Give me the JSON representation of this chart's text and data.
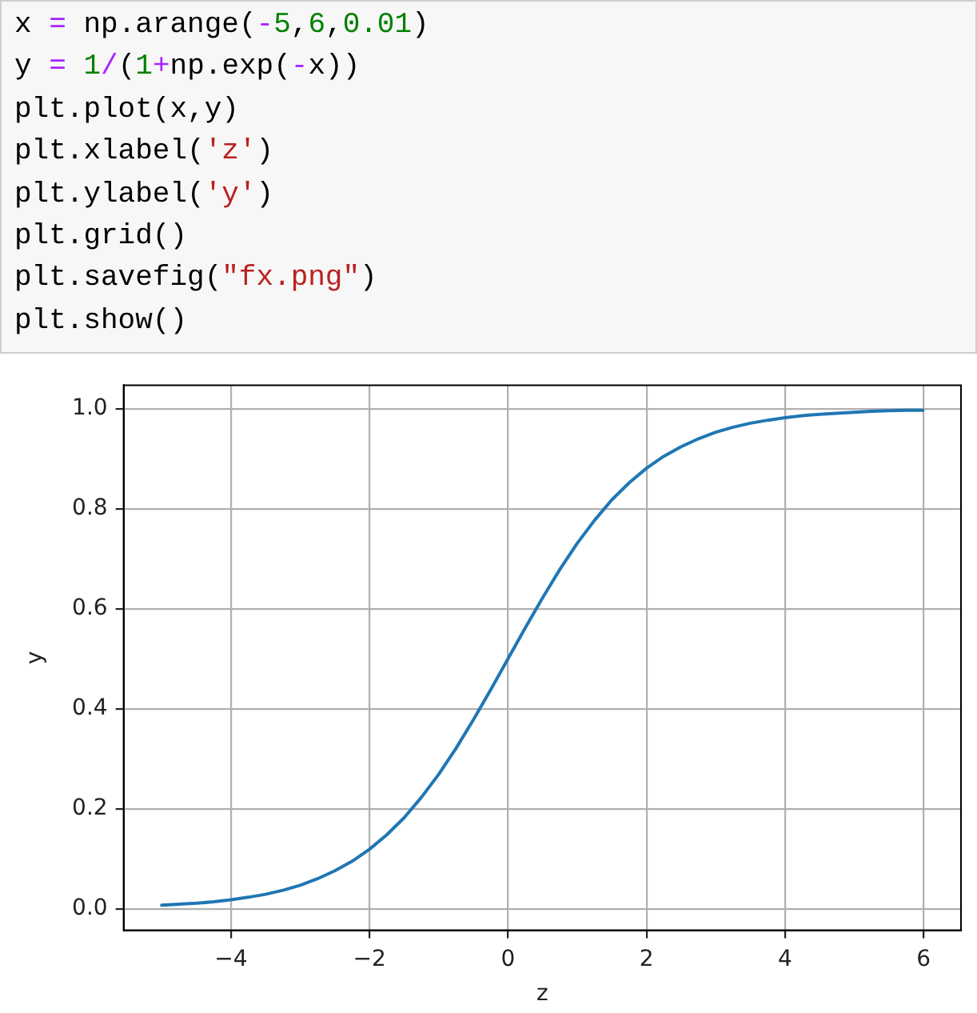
{
  "chart_data": {
    "type": "line",
    "annotations": [
      "x = np.arange(-5,6,0.01)",
      "y = 1/(1+np.exp(-x))",
      "plt.plot(x,y)",
      "plt.xlabel('z')",
      "plt.ylabel('y')",
      "plt.grid()",
      "plt.savefig(\"fx.png\")",
      "plt.show()"
    ],
    "xlabel": "z",
    "ylabel": "y",
    "x": [
      -5,
      -4.75,
      -4.5,
      -4.25,
      -4,
      -3.75,
      -3.5,
      -3.25,
      -3,
      -2.75,
      -2.5,
      -2.25,
      -2,
      -1.75,
      -1.5,
      -1.25,
      -1,
      -0.75,
      -0.5,
      -0.25,
      0,
      0.25,
      0.5,
      0.75,
      1,
      1.25,
      1.5,
      1.75,
      2,
      2.25,
      2.5,
      2.75,
      3,
      3.25,
      3.5,
      3.75,
      4,
      4.25,
      4.5,
      4.75,
      5,
      5.25,
      5.5,
      5.75,
      5.99
    ],
    "series": [
      {
        "color": "#1f77b4",
        "values": [
          0.007,
          0.009,
          0.011,
          0.014,
          0.018,
          0.023,
          0.029,
          0.037,
          0.047,
          0.06,
          0.076,
          0.095,
          0.119,
          0.148,
          0.182,
          0.223,
          0.269,
          0.321,
          0.378,
          0.438,
          0.5,
          0.562,
          0.622,
          0.679,
          0.731,
          0.777,
          0.818,
          0.852,
          0.881,
          0.905,
          0.924,
          0.94,
          0.953,
          0.963,
          0.971,
          0.977,
          0.982,
          0.986,
          0.989,
          0.991,
          0.993,
          0.995,
          0.996,
          0.997,
          0.997
        ]
      }
    ],
    "xlim": [
      -5.55,
      6.54
    ],
    "ylim": [
      -0.043,
      1.047
    ],
    "xticks": [
      {
        "value": -4,
        "label": "−4"
      },
      {
        "value": -2,
        "label": "−2"
      },
      0,
      2,
      4,
      6
    ],
    "yticks": [
      {
        "value": 0,
        "label": "0.0"
      },
      0.2,
      0.4,
      0.6,
      0.8,
      {
        "value": 1,
        "label": "1.0"
      }
    ],
    "grid": true,
    "marker": "none",
    "line_style": "solid"
  }
}
